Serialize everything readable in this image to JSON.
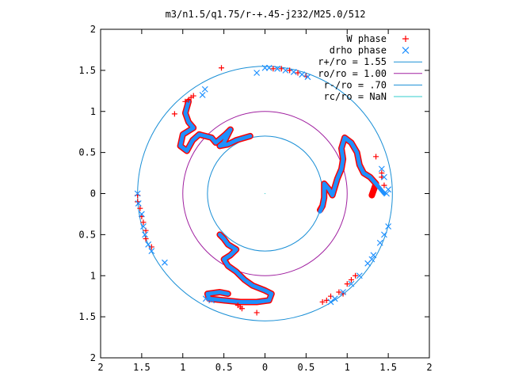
{
  "chart_data": {
    "type": "scatter",
    "title": "m3/n1.5/q1.75/r-+.45-j232/M25.0/512",
    "xlabel": "",
    "ylabel": "",
    "xlim": [
      -2,
      2
    ],
    "ylim": [
      -2,
      2
    ],
    "x_tick_values": [
      -2,
      -1.5,
      -1,
      -0.5,
      0,
      0.5,
      1,
      1.5,
      2
    ],
    "x_tick_labels": [
      "2",
      "1.5",
      "1",
      "0.5",
      "0",
      "0.5",
      "1",
      "1.5",
      "2"
    ],
    "y_tick_values": [
      2,
      1.5,
      1,
      0.5,
      0,
      -0.5,
      -1,
      -1.5,
      -2
    ],
    "y_tick_labels": [
      "2",
      "1.5",
      "1",
      "0.5",
      "0",
      "0.5",
      "1",
      "1.5",
      "2"
    ],
    "grid": false,
    "legend_position": "top-right",
    "legend": [
      {
        "label": "W phase",
        "color": "#ff0000",
        "marker": "plus"
      },
      {
        "label": "drho phase",
        "color": "#1e90ff",
        "marker": "cross"
      },
      {
        "label": "r+/ro = 1.55",
        "color": "#1a8fd6",
        "marker": "line"
      },
      {
        "label": "ro/ro = 1.00",
        "color": "#a020a0",
        "marker": "line"
      },
      {
        "label": "r-/ro = .70",
        "color": "#1a8fd6",
        "marker": "line"
      },
      {
        "label": "rc/ro = NaN",
        "color": "#33cccc",
        "marker": "line"
      }
    ],
    "circles": [
      {
        "name": "r+/ro = 1.55",
        "radius": 1.55,
        "color": "#1a8fd6"
      },
      {
        "name": "ro/ro = 1.00",
        "radius": 1.0,
        "color": "#a020a0"
      },
      {
        "name": "r-/ro = .70",
        "radius": 0.7,
        "color": "#1a8fd6"
      }
    ],
    "series": [
      {
        "name": "W phase",
        "color": "#ff0000",
        "points": [
          [
            -1.1,
            0.97
          ],
          [
            -0.97,
            1.12
          ],
          [
            -0.93,
            1.14
          ],
          [
            -0.9,
            1.17
          ],
          [
            -0.87,
            1.19
          ],
          [
            -0.53,
            1.53
          ],
          [
            0.1,
            1.52
          ],
          [
            0.2,
            1.52
          ],
          [
            0.3,
            1.5
          ],
          [
            0.4,
            1.47
          ],
          [
            0.5,
            1.43
          ],
          [
            1.35,
            0.45
          ],
          [
            1.42,
            0.25
          ],
          [
            1.42,
            0.2
          ],
          [
            1.45,
            0.1
          ],
          [
            0.75,
            -1.3
          ],
          [
            0.8,
            -1.25
          ],
          [
            0.9,
            -1.2
          ],
          [
            1.0,
            -1.1
          ],
          [
            1.05,
            -1.05
          ],
          [
            1.1,
            -1.0
          ],
          [
            0.7,
            -1.32
          ],
          [
            0.95,
            -1.22
          ],
          [
            -1.55,
            -0.02
          ],
          [
            -1.55,
            -0.1
          ],
          [
            -1.52,
            -0.18
          ],
          [
            -1.5,
            -0.28
          ],
          [
            -1.48,
            -0.35
          ],
          [
            -1.45,
            -0.45
          ],
          [
            -1.45,
            -0.55
          ],
          [
            -1.38,
            -0.65
          ],
          [
            -0.33,
            -1.36
          ],
          [
            -0.3,
            -1.38
          ],
          [
            -0.28,
            -1.4
          ],
          [
            -0.1,
            -1.45
          ]
        ]
      },
      {
        "name": "drho phase",
        "color": "#1e90ff",
        "points": [
          [
            -0.73,
            1.27
          ],
          [
            -0.76,
            1.2
          ],
          [
            -0.1,
            1.47
          ],
          [
            0.0,
            1.53
          ],
          [
            0.05,
            1.53
          ],
          [
            0.15,
            1.52
          ],
          [
            0.25,
            1.5
          ],
          [
            0.35,
            1.48
          ],
          [
            0.45,
            1.45
          ],
          [
            0.52,
            1.42
          ],
          [
            -1.55,
            0.0
          ],
          [
            -1.54,
            -0.12
          ],
          [
            -1.5,
            -0.25
          ],
          [
            -1.48,
            -0.4
          ],
          [
            -1.46,
            -0.5
          ],
          [
            -1.42,
            -0.62
          ],
          [
            -1.38,
            -0.7
          ],
          [
            -1.22,
            -0.84
          ],
          [
            1.48,
            0.0
          ],
          [
            1.5,
            0.05
          ],
          [
            1.45,
            0.2
          ],
          [
            1.42,
            0.3
          ],
          [
            0.8,
            -1.32
          ],
          [
            0.85,
            -1.28
          ],
          [
            0.95,
            -1.2
          ],
          [
            1.05,
            -1.1
          ],
          [
            1.15,
            -1.0
          ],
          [
            1.25,
            -0.85
          ],
          [
            1.3,
            -0.8
          ],
          [
            1.32,
            -0.75
          ],
          [
            1.4,
            -0.6
          ],
          [
            1.5,
            -0.4
          ],
          [
            1.45,
            -0.5
          ],
          [
            -0.72,
            -1.28
          ],
          [
            -0.65,
            -1.3
          ]
        ]
      }
    ],
    "curves": [
      {
        "name": "W phase",
        "color": "#ff0000",
        "points": [
          [
            -0.93,
            1.12
          ],
          [
            -0.97,
            0.98
          ],
          [
            -0.93,
            0.87
          ],
          [
            -0.87,
            0.8
          ],
          [
            -1.0,
            0.72
          ],
          [
            -1.03,
            0.58
          ],
          [
            -0.95,
            0.52
          ],
          [
            -0.88,
            0.65
          ],
          [
            -0.8,
            0.72
          ],
          [
            -0.65,
            0.68
          ],
          [
            -0.6,
            0.62
          ],
          [
            -0.48,
            0.72
          ],
          [
            -0.42,
            0.78
          ],
          [
            -0.5,
            0.62
          ],
          [
            -0.55,
            0.58
          ],
          [
            -0.45,
            0.6
          ],
          [
            -0.35,
            0.65
          ],
          [
            -0.18,
            0.7
          ]
        ]
      },
      {
        "name": "W phase",
        "color": "#ff0000",
        "points": [
          [
            -0.55,
            -0.5
          ],
          [
            -0.5,
            -0.55
          ],
          [
            -0.45,
            -0.62
          ],
          [
            -0.35,
            -0.68
          ],
          [
            -0.42,
            -0.75
          ],
          [
            -0.5,
            -0.8
          ],
          [
            -0.45,
            -0.88
          ],
          [
            -0.35,
            -0.95
          ],
          [
            -0.25,
            -1.05
          ],
          [
            -0.15,
            -1.12
          ],
          [
            0.0,
            -1.18
          ],
          [
            0.08,
            -1.22
          ],
          [
            0.05,
            -1.3
          ],
          [
            -0.1,
            -1.32
          ],
          [
            -0.3,
            -1.32
          ],
          [
            -0.5,
            -1.3
          ],
          [
            -0.68,
            -1.28
          ],
          [
            -0.7,
            -1.22
          ],
          [
            -0.55,
            -1.2
          ],
          [
            -0.45,
            -1.22
          ]
        ]
      },
      {
        "name": "W phase",
        "color": "#ff0000",
        "points": [
          [
            1.3,
            -0.02
          ],
          [
            1.35,
            0.12
          ],
          [
            1.28,
            0.2
          ],
          [
            1.2,
            0.25
          ],
          [
            1.15,
            0.35
          ],
          [
            1.12,
            0.5
          ],
          [
            1.05,
            0.62
          ],
          [
            0.97,
            0.68
          ],
          [
            0.93,
            0.55
          ],
          [
            0.95,
            0.42
          ],
          [
            0.93,
            0.3
          ],
          [
            0.88,
            0.18
          ],
          [
            0.85,
            0.08
          ],
          [
            0.82,
            -0.02
          ],
          [
            0.78,
            0.05
          ],
          [
            0.72,
            0.12
          ],
          [
            0.72,
            -0.05
          ],
          [
            0.7,
            -0.15
          ],
          [
            0.67,
            -0.2
          ]
        ]
      },
      {
        "name": "drho phase",
        "color": "#1e90ff",
        "points": [
          [
            -0.93,
            1.12
          ],
          [
            -0.97,
            0.98
          ],
          [
            -0.93,
            0.87
          ],
          [
            -0.87,
            0.8
          ],
          [
            -1.0,
            0.72
          ],
          [
            -1.03,
            0.58
          ],
          [
            -0.95,
            0.52
          ],
          [
            -0.88,
            0.65
          ],
          [
            -0.8,
            0.72
          ],
          [
            -0.65,
            0.68
          ],
          [
            -0.6,
            0.62
          ],
          [
            -0.48,
            0.72
          ],
          [
            -0.42,
            0.78
          ],
          [
            -0.5,
            0.62
          ],
          [
            -0.55,
            0.58
          ],
          [
            -0.45,
            0.6
          ],
          [
            -0.35,
            0.65
          ],
          [
            -0.18,
            0.7
          ]
        ]
      },
      {
        "name": "drho phase",
        "color": "#1e90ff",
        "points": [
          [
            -0.55,
            -0.5
          ],
          [
            -0.5,
            -0.55
          ],
          [
            -0.45,
            -0.62
          ],
          [
            -0.35,
            -0.68
          ],
          [
            -0.42,
            -0.75
          ],
          [
            -0.5,
            -0.8
          ],
          [
            -0.45,
            -0.88
          ],
          [
            -0.35,
            -0.95
          ],
          [
            -0.25,
            -1.05
          ],
          [
            -0.15,
            -1.12
          ],
          [
            0.0,
            -1.18
          ],
          [
            0.08,
            -1.22
          ],
          [
            0.05,
            -1.3
          ],
          [
            -0.1,
            -1.32
          ],
          [
            -0.3,
            -1.32
          ],
          [
            -0.5,
            -1.3
          ],
          [
            -0.68,
            -1.28
          ],
          [
            -0.7,
            -1.22
          ],
          [
            -0.55,
            -1.2
          ],
          [
            -0.45,
            -1.22
          ]
        ]
      },
      {
        "name": "drho phase",
        "color": "#1e90ff",
        "points": [
          [
            1.45,
            0.0
          ],
          [
            1.35,
            0.12
          ],
          [
            1.28,
            0.2
          ],
          [
            1.2,
            0.25
          ],
          [
            1.15,
            0.35
          ],
          [
            1.12,
            0.5
          ],
          [
            1.05,
            0.62
          ],
          [
            0.97,
            0.68
          ],
          [
            0.93,
            0.55
          ],
          [
            0.95,
            0.42
          ],
          [
            0.93,
            0.3
          ],
          [
            0.88,
            0.18
          ],
          [
            0.85,
            0.08
          ],
          [
            0.82,
            -0.02
          ],
          [
            0.78,
            0.05
          ],
          [
            0.72,
            0.12
          ],
          [
            0.72,
            -0.05
          ],
          [
            0.7,
            -0.15
          ],
          [
            0.67,
            -0.22
          ]
        ]
      }
    ]
  }
}
